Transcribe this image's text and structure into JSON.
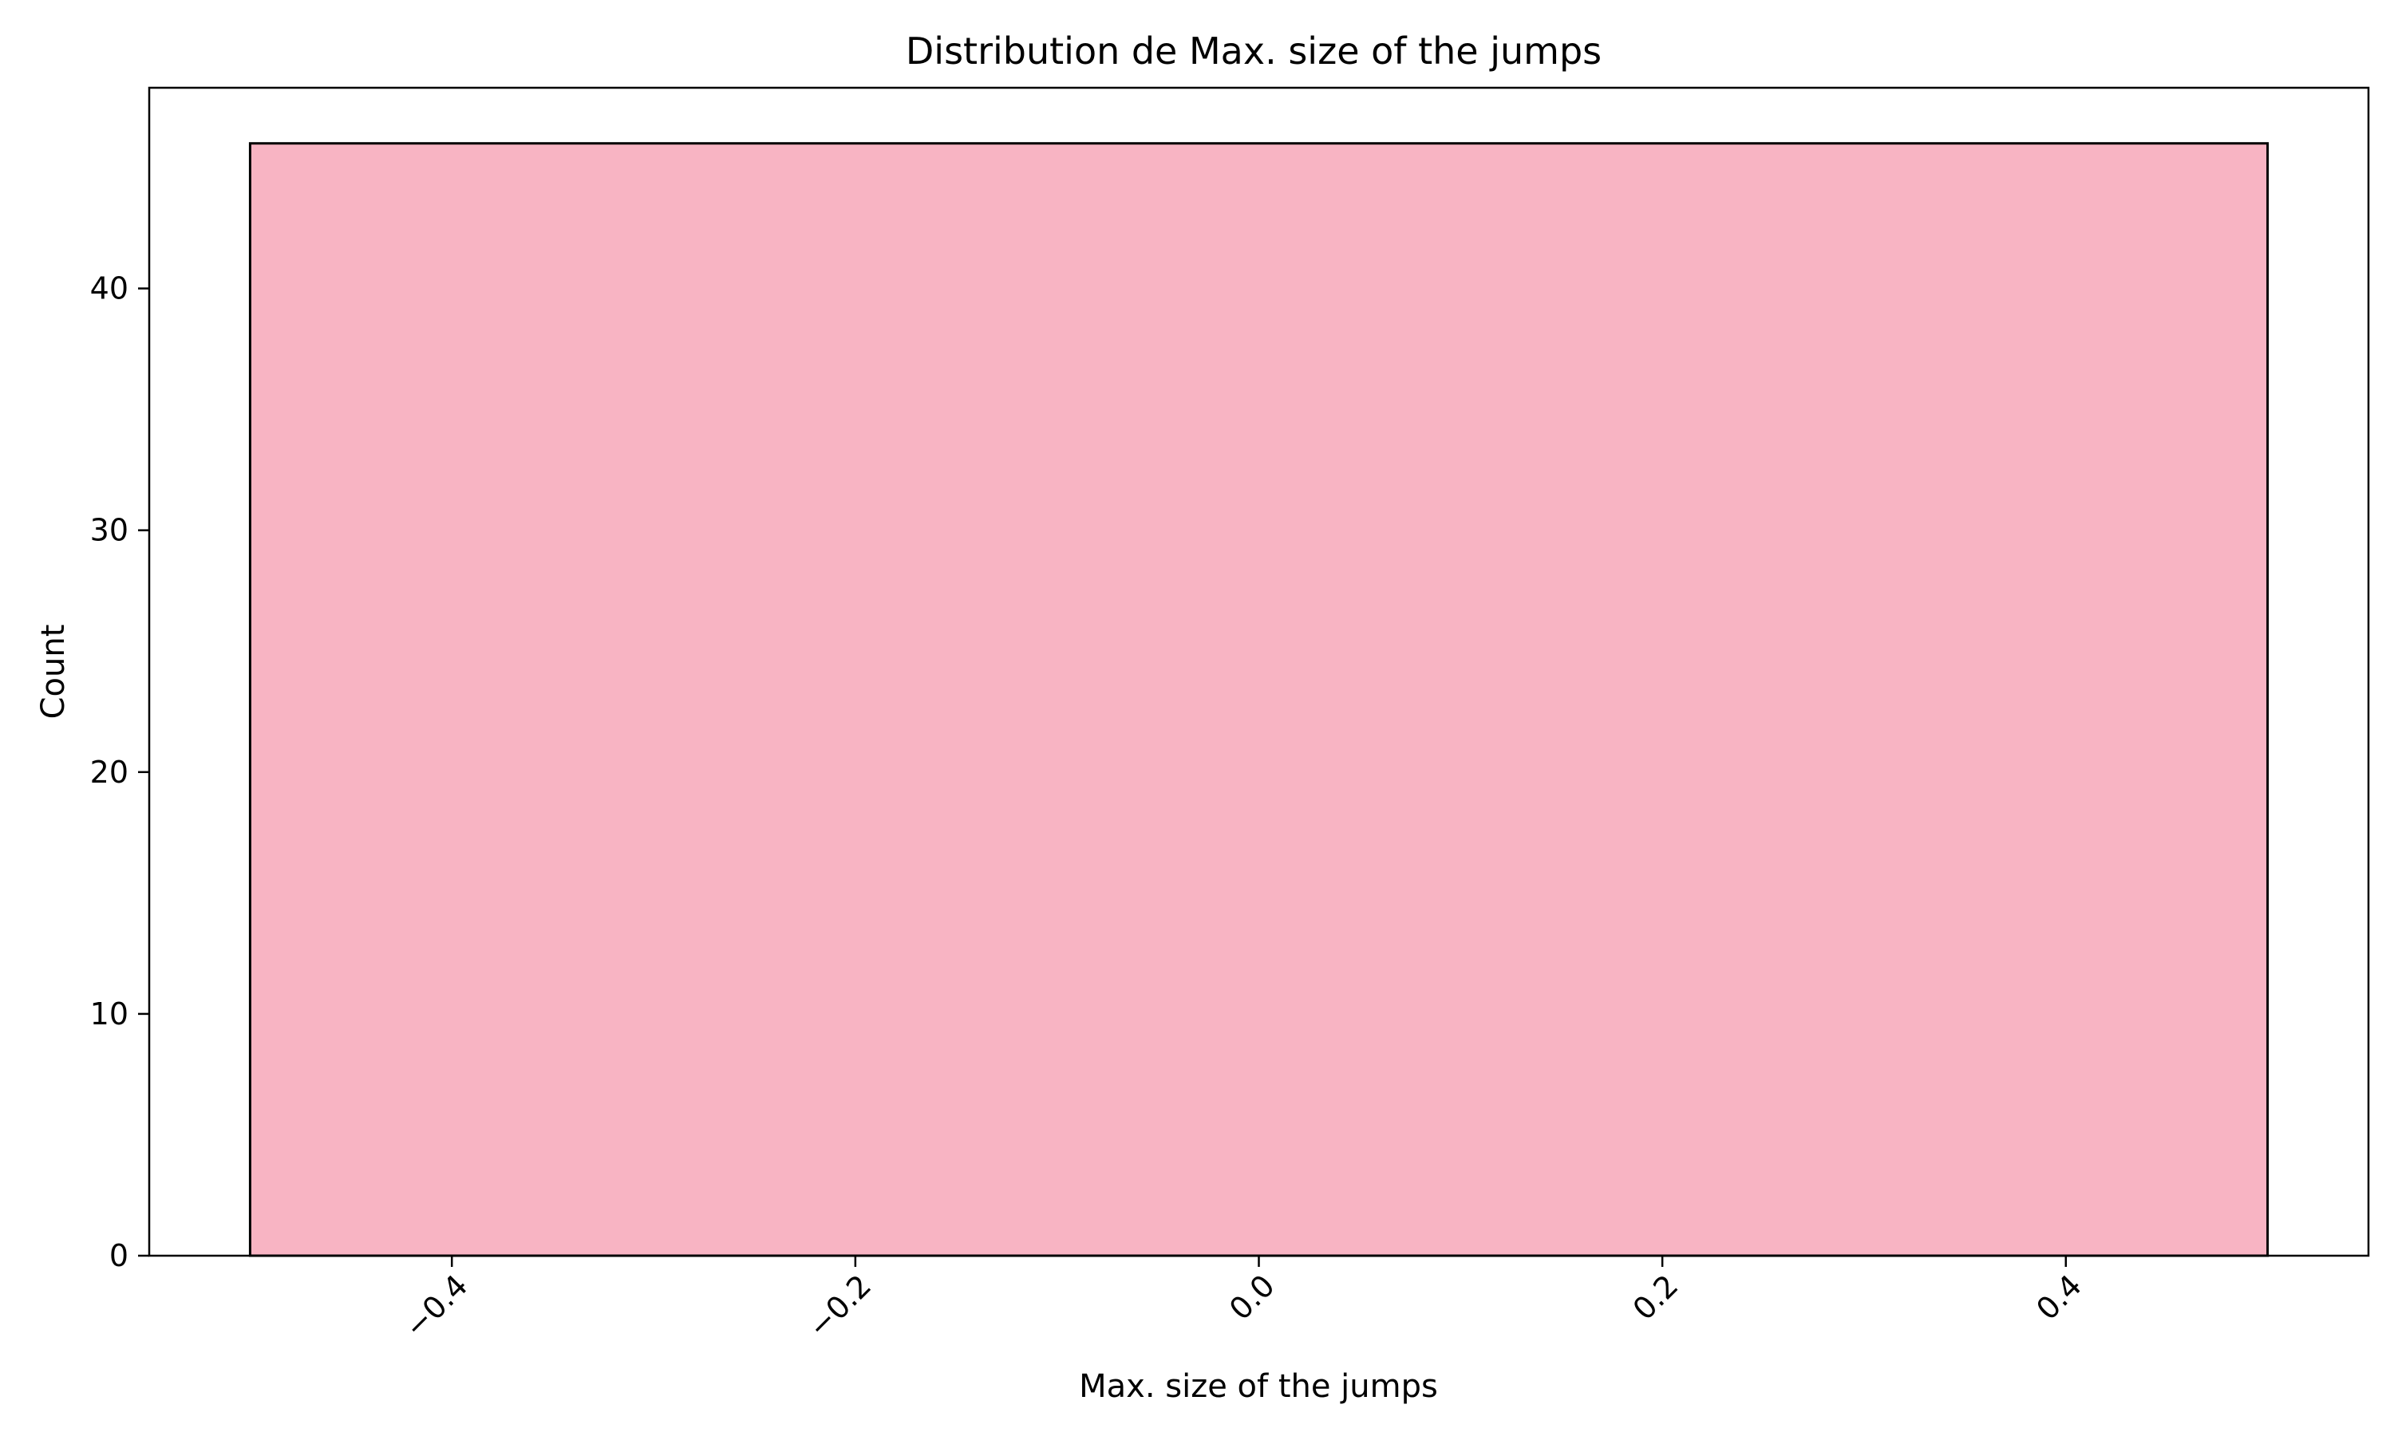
{
  "chart_data": {
    "type": "bar",
    "title": "Distribution de Max. size of the jumps",
    "xlabel": "Max. size of the jumps",
    "ylabel": "Count",
    "bins": [
      {
        "x0": -0.5,
        "x1": 0.5,
        "count": 46
      }
    ],
    "xlim": [
      -0.55,
      0.55
    ],
    "ylim": [
      0,
      48.3
    ],
    "xticks": [
      -0.4,
      -0.2,
      0.0,
      0.2,
      0.4
    ],
    "xtick_labels": [
      "−0.4",
      "−0.2",
      "0.0",
      "0.2",
      "0.4"
    ],
    "yticks": [
      0,
      10,
      20,
      30,
      40
    ],
    "ytick_labels": [
      "0",
      "10",
      "20",
      "30",
      "40"
    ],
    "bar_color": "#f8b4c3",
    "edge_color": "#000000",
    "grid": false,
    "legend": "none",
    "xtick_rotation": "45 degrees"
  }
}
